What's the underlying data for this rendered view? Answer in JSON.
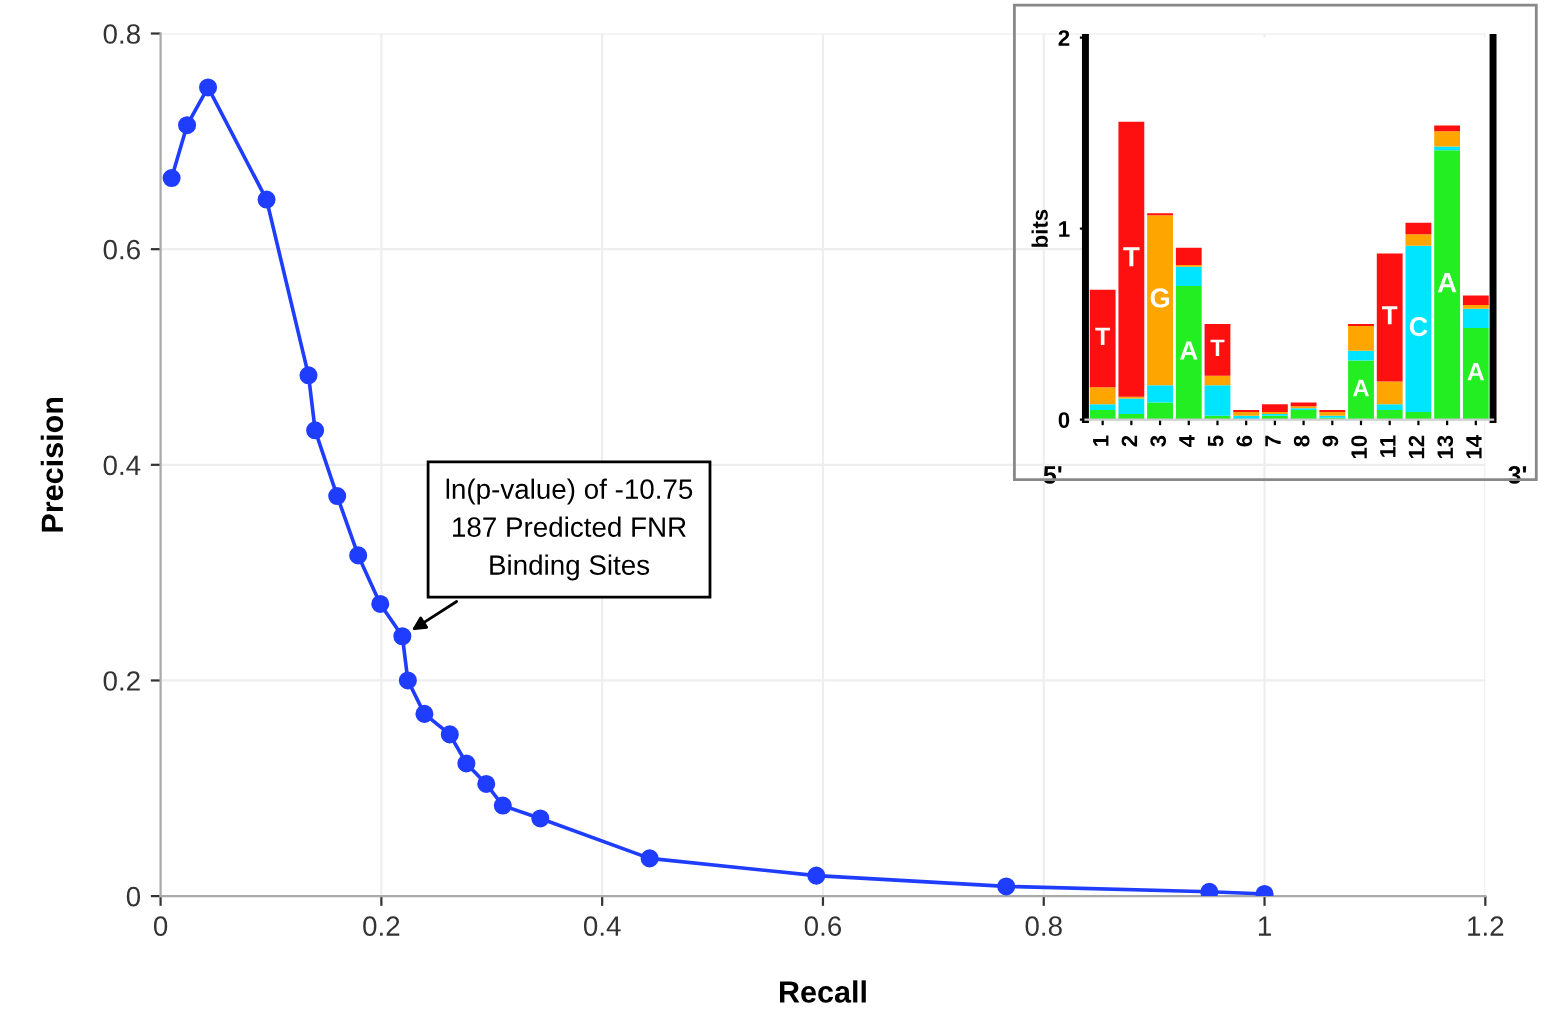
{
  "chart_data": [
    {
      "type": "line",
      "xlabel": "Recall",
      "ylabel": "Precision",
      "marker": "circle",
      "legend": false,
      "grid": true,
      "xlim": [
        0,
        1.2
      ],
      "xticks": [
        0,
        0.2,
        0.4,
        0.6,
        0.8,
        1,
        1.2
      ],
      "ylim": [
        0,
        0.8
      ],
      "yticks": [
        0,
        0.2,
        0.4,
        0.6,
        0.8
      ],
      "series": [
        {
          "color": "#1f3dff",
          "x": [
            0.01,
            0.024,
            0.043,
            0.096,
            0.134,
            0.14,
            0.16,
            0.179,
            0.199,
            0.219,
            0.224,
            0.239,
            0.262,
            0.277,
            0.295,
            0.31,
            0.344,
            0.443,
            0.594,
            0.766,
            0.95,
            1.0
          ],
          "values": [
            0.666,
            0.715,
            0.75,
            0.646,
            0.483,
            0.432,
            0.371,
            0.316,
            0.271,
            0.241,
            0.2,
            0.169,
            0.15,
            0.123,
            0.104,
            0.084,
            0.072,
            0.035,
            0.019,
            0.009,
            0.004,
            0.002
          ]
        }
      ],
      "annotations": [
        {
          "text": "ln(p-value) of -10.75\n187 Predicted FNR\nBinding Sites",
          "x": 0.219,
          "y": 0.241
        }
      ]
    },
    {
      "type": "bar",
      "stacked": true,
      "ylabel": "bits",
      "ylim": [
        0,
        2
      ],
      "yticks": [
        0,
        1,
        2
      ],
      "categories": [
        "1",
        "2",
        "3",
        "4",
        "5",
        "6",
        "7",
        "8",
        "9",
        "10",
        "11",
        "12",
        "13",
        "14"
      ],
      "series": [
        {
          "name": "A",
          "color": "#22ee22",
          "values": [
            0.05,
            0.03,
            0.09,
            0.7,
            0.02,
            null,
            0.02,
            0.05,
            0.01,
            0.31,
            0.05,
            0.04,
            1.41,
            0.48
          ]
        },
        {
          "name": "C",
          "color": "#00e5ff",
          "values": [
            0.03,
            0.08,
            0.09,
            0.1,
            0.16,
            0.02,
            0.01,
            0.01,
            0.01,
            0.05,
            0.03,
            0.87,
            0.02,
            0.1
          ]
        },
        {
          "name": "G",
          "color": "#ffa500",
          "values": [
            0.09,
            0.01,
            0.89,
            0.01,
            0.05,
            0.02,
            0.01,
            0.01,
            0.02,
            0.13,
            0.12,
            0.06,
            0.08,
            0.02
          ]
        },
        {
          "name": "T",
          "color": "#ff1010",
          "values": [
            0.51,
            1.44,
            0.01,
            0.09,
            0.27,
            0.01,
            0.04,
            0.02,
            0.01,
            0.01,
            0.67,
            0.06,
            0.03,
            0.05
          ]
        }
      ],
      "annotations": [
        "5'",
        "3'"
      ]
    }
  ]
}
